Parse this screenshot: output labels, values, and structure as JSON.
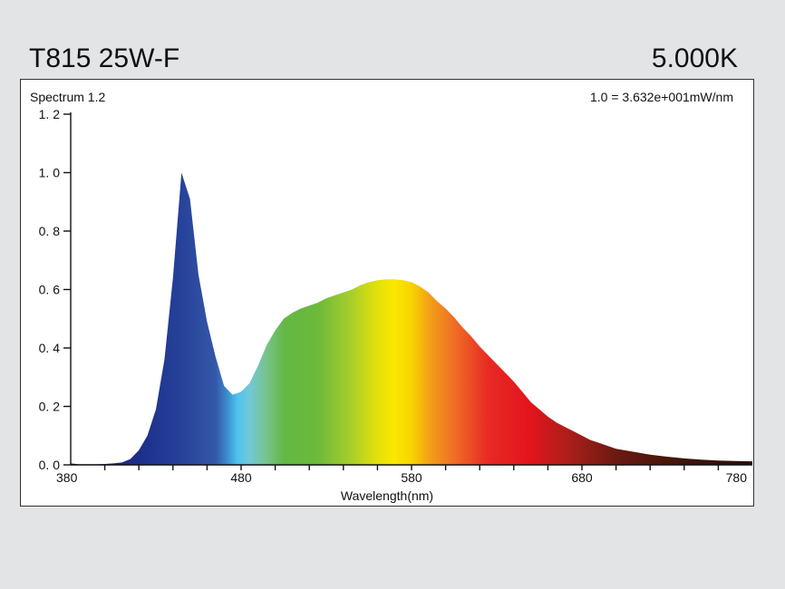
{
  "header": {
    "model": "T815 25W-F",
    "cct": "5.000K"
  },
  "chart_data": {
    "type": "area",
    "title": "Spectrum 1.2",
    "scale_note": "1.0 =  3.632e+001mW/nm",
    "xlabel": "Wavelength(nm)",
    "ylabel": "",
    "xlim": [
      380,
      780
    ],
    "ylim": [
      0,
      1.2
    ],
    "x_ticks": [
      380,
      480,
      580,
      680,
      780
    ],
    "y_ticks": [
      "0. 0",
      "0. 2",
      "0. 4",
      "0. 6",
      "0. 8",
      "1. 0",
      "1. 2"
    ],
    "grid": false,
    "fill": "visible-spectrum color gradient",
    "series": [
      {
        "x": [
          380,
          385,
          390,
          395,
          400,
          405,
          410,
          415,
          420,
          425,
          430,
          435,
          440,
          445,
          450,
          455,
          460,
          465,
          470,
          475,
          480,
          485,
          490,
          495,
          500,
          505,
          510,
          515,
          520,
          525,
          530,
          535,
          540,
          545,
          550,
          555,
          560,
          565,
          570,
          575,
          580,
          585,
          590,
          595,
          600,
          605,
          610,
          615,
          620,
          625,
          630,
          635,
          640,
          645,
          650,
          655,
          660,
          665,
          670,
          675,
          680,
          685,
          690,
          695,
          700,
          710,
          720,
          730,
          740,
          750,
          760,
          770,
          780
        ],
        "y": [
          0.005,
          0.002,
          0.002,
          0.002,
          0.003,
          0.005,
          0.008,
          0.02,
          0.05,
          0.1,
          0.19,
          0.36,
          0.64,
          1.0,
          0.91,
          0.65,
          0.49,
          0.37,
          0.27,
          0.24,
          0.25,
          0.28,
          0.34,
          0.41,
          0.46,
          0.5,
          0.52,
          0.535,
          0.545,
          0.555,
          0.57,
          0.58,
          0.59,
          0.6,
          0.615,
          0.625,
          0.632,
          0.635,
          0.635,
          0.632,
          0.625,
          0.61,
          0.59,
          0.56,
          0.535,
          0.505,
          0.47,
          0.44,
          0.405,
          0.375,
          0.345,
          0.315,
          0.285,
          0.25,
          0.215,
          0.19,
          0.165,
          0.145,
          0.13,
          0.115,
          0.1,
          0.085,
          0.075,
          0.065,
          0.055,
          0.045,
          0.035,
          0.028,
          0.022,
          0.018,
          0.015,
          0.013,
          0.012
        ]
      }
    ]
  }
}
